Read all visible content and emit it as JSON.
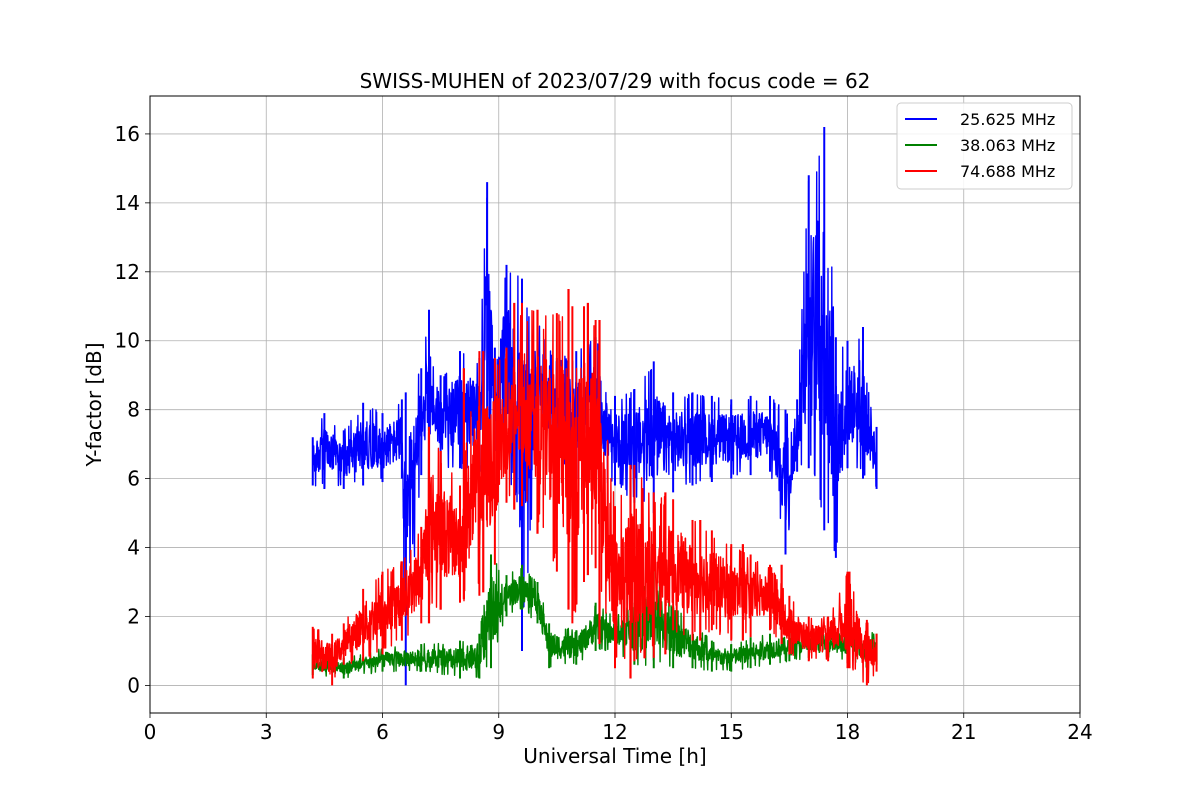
{
  "chart_data": {
    "type": "line",
    "title": "SWISS-MUHEN of 2023/07/29 with focus code = 62",
    "xlabel": "Universal Time [h]",
    "ylabel": "Y-factor [dB]",
    "xlim": [
      0,
      24
    ],
    "ylim": [
      -0.8,
      17.1
    ],
    "xticks": [
      0,
      3,
      6,
      9,
      12,
      15,
      18,
      21,
      24
    ],
    "yticks": [
      0,
      2,
      4,
      6,
      8,
      10,
      12,
      14,
      16
    ],
    "grid": true,
    "legend_position": "top-right",
    "series": [
      {
        "name": "25.625 MHz",
        "color": "#0000ff",
        "envelope": [
          [
            4.2,
            5.8,
            7.2
          ],
          [
            4.5,
            5.7,
            7.9
          ],
          [
            5.0,
            5.7,
            7.4
          ],
          [
            5.5,
            5.8,
            8.2
          ],
          [
            6.0,
            5.9,
            7.9
          ],
          [
            6.5,
            6.0,
            8.3
          ],
          [
            6.6,
            0.0,
            8.5
          ],
          [
            7.0,
            6.1,
            9.2
          ],
          [
            7.2,
            6.3,
            10.9
          ],
          [
            7.5,
            6.3,
            9.0
          ],
          [
            8.0,
            6.3,
            9.7
          ],
          [
            8.5,
            6.2,
            9.5
          ],
          [
            8.7,
            6.4,
            14.6
          ],
          [
            8.9,
            6.8,
            9.8
          ],
          [
            9.2,
            7.3,
            12.2
          ],
          [
            9.6,
            1.0,
            11.8
          ],
          [
            10.0,
            6.9,
            10.6
          ],
          [
            10.5,
            6.6,
            9.5
          ],
          [
            11.0,
            6.0,
            9.7
          ],
          [
            11.5,
            6.0,
            10.1
          ],
          [
            12.0,
            5.8,
            8.4
          ],
          [
            12.5,
            5.3,
            8.6
          ],
          [
            13.0,
            5.0,
            9.4
          ],
          [
            13.5,
            5.6,
            8.5
          ],
          [
            14.0,
            5.8,
            8.5
          ],
          [
            14.5,
            5.9,
            8.4
          ],
          [
            15.0,
            6.0,
            8.3
          ],
          [
            15.5,
            6.1,
            8.4
          ],
          [
            16.0,
            6.2,
            8.4
          ],
          [
            16.4,
            3.8,
            8.0
          ],
          [
            16.7,
            6.2,
            8.3
          ],
          [
            17.0,
            6.3,
            14.8
          ],
          [
            17.4,
            4.5,
            16.2
          ],
          [
            17.7,
            3.7,
            10.1
          ],
          [
            18.0,
            6.3,
            10.0
          ],
          [
            18.4,
            6.0,
            10.4
          ],
          [
            18.75,
            5.7,
            7.5
          ]
        ]
      },
      {
        "name": "38.063 MHz",
        "color": "#008000",
        "envelope": [
          [
            4.2,
            0.3,
            0.9
          ],
          [
            5.0,
            0.2,
            0.8
          ],
          [
            6.0,
            0.4,
            1.1
          ],
          [
            7.0,
            0.4,
            1.2
          ],
          [
            8.0,
            0.2,
            1.3
          ],
          [
            8.5,
            0.2,
            1.5
          ],
          [
            8.8,
            0.5,
            3.8
          ],
          [
            9.2,
            2.0,
            3.2
          ],
          [
            9.6,
            2.2,
            3.5
          ],
          [
            10.0,
            1.8,
            3.0
          ],
          [
            10.3,
            0.5,
            1.8
          ],
          [
            11.0,
            0.6,
            1.6
          ],
          [
            11.5,
            1.0,
            2.4
          ],
          [
            12.0,
            1.0,
            2.0
          ],
          [
            12.5,
            0.6,
            2.4
          ],
          [
            13.0,
            0.5,
            3.6
          ],
          [
            13.5,
            0.5,
            2.3
          ],
          [
            14.0,
            0.5,
            1.9
          ],
          [
            14.5,
            0.4,
            1.3
          ],
          [
            15.0,
            0.4,
            1.2
          ],
          [
            15.5,
            0.5,
            1.4
          ],
          [
            16.0,
            0.6,
            1.5
          ],
          [
            16.5,
            0.7,
            1.6
          ],
          [
            17.0,
            0.8,
            1.5
          ],
          [
            17.5,
            0.8,
            1.7
          ],
          [
            18.0,
            0.7,
            1.7
          ],
          [
            18.5,
            0.5,
            1.6
          ],
          [
            18.75,
            0.6,
            1.5
          ]
        ]
      },
      {
        "name": "74.688 MHz",
        "color": "#ff0000",
        "envelope": [
          [
            4.2,
            0.2,
            1.7
          ],
          [
            4.7,
            0.0,
            1.5
          ],
          [
            5.0,
            0.6,
            1.8
          ],
          [
            5.5,
            0.7,
            2.8
          ],
          [
            6.0,
            0.9,
            3.3
          ],
          [
            6.5,
            1.3,
            3.6
          ],
          [
            7.0,
            1.8,
            4.6
          ],
          [
            7.2,
            2.0,
            7.5
          ],
          [
            7.5,
            2.2,
            6.8
          ],
          [
            8.0,
            2.4,
            5.8
          ],
          [
            8.5,
            2.6,
            9.7
          ],
          [
            8.9,
            3.5,
            9.5
          ],
          [
            9.2,
            5.3,
            9.8
          ],
          [
            9.6,
            5.2,
            11.1
          ],
          [
            10.0,
            4.8,
            10.8
          ],
          [
            10.5,
            3.3,
            10.8
          ],
          [
            10.9,
            1.8,
            11.0
          ],
          [
            11.2,
            3.0,
            11.0
          ],
          [
            11.5,
            3.4,
            10.6
          ],
          [
            12.0,
            0.5,
            5.2
          ],
          [
            12.5,
            0.7,
            6.4
          ],
          [
            13.0,
            0.8,
            5.6
          ],
          [
            13.5,
            1.6,
            5.4
          ],
          [
            14.0,
            1.3,
            4.8
          ],
          [
            14.5,
            1.6,
            4.5
          ],
          [
            15.0,
            1.3,
            4.1
          ],
          [
            15.5,
            1.4,
            3.8
          ],
          [
            16.0,
            1.6,
            3.5
          ],
          [
            16.5,
            0.9,
            2.6
          ],
          [
            17.0,
            0.7,
            2.0
          ],
          [
            17.5,
            0.7,
            2.0
          ],
          [
            18.0,
            0.5,
            3.3
          ],
          [
            18.5,
            0.0,
            1.9
          ],
          [
            18.75,
            0.4,
            1.5
          ]
        ],
        "spikes": [
          [
            7.2,
            1.8,
            7.5
          ],
          [
            7.5,
            2.2,
            6.8
          ],
          [
            8.1,
            2.5,
            9.2
          ],
          [
            8.6,
            2.7,
            9.7
          ],
          [
            9.4,
            5.1,
            11.1
          ],
          [
            10.0,
            4.4,
            10.9
          ],
          [
            10.8,
            2.2,
            11.5
          ],
          [
            11.3,
            3.2,
            11.1
          ],
          [
            11.6,
            1.2,
            10.6
          ],
          [
            12.4,
            0.2,
            6.4
          ],
          [
            13.3,
            0.9,
            5.6
          ],
          [
            14.2,
            1.3,
            4.8
          ],
          [
            15.3,
            1.3,
            4.1
          ],
          [
            16.3,
            1.2,
            3.5
          ],
          [
            18.05,
            0.5,
            3.3
          ]
        ]
      }
    ]
  }
}
